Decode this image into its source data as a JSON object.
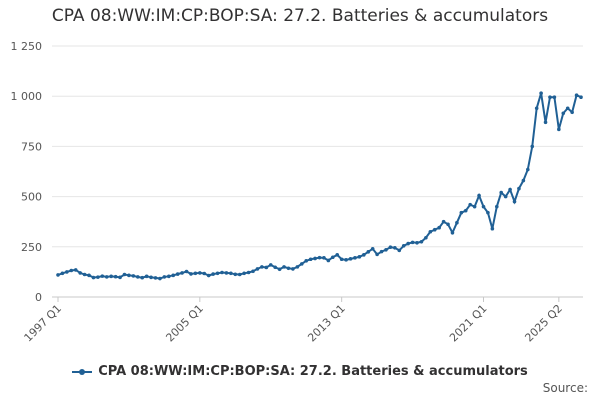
{
  "chart_data": {
    "type": "line",
    "title": "CPA 08:WW:IM:CP:BOP:SA: 27.2. Batteries & accumulators",
    "xlabel": "",
    "ylabel": "",
    "x_tick_labels": [
      "1997 Q1",
      "2005 Q1",
      "2013 Q1",
      "2021 Q1",
      "2025 Q2"
    ],
    "y_tick_labels": [
      "0",
      "250",
      "500",
      "750",
      "1 000",
      "1 250"
    ],
    "ylim": [
      0,
      1250
    ],
    "grid": true,
    "legend_position": "bottom",
    "start_year": 1997,
    "start_quarter": 1,
    "series": [
      {
        "name": "CPA 08:WW:IM:CP:BOP:SA: 27.2. Batteries & accumulators",
        "color": "#206095",
        "values": [
          110,
          118,
          125,
          132,
          135,
          120,
          112,
          108,
          97,
          99,
          104,
          100,
          103,
          101,
          98,
          112,
          108,
          105,
          100,
          96,
          103,
          98,
          95,
          92,
          100,
          103,
          108,
          114,
          120,
          127,
          115,
          118,
          120,
          117,
          107,
          114,
          118,
          122,
          120,
          118,
          113,
          112,
          118,
          122,
          128,
          140,
          150,
          147,
          160,
          148,
          138,
          150,
          143,
          140,
          150,
          165,
          180,
          188,
          192,
          196,
          195,
          182,
          198,
          210,
          188,
          185,
          190,
          195,
          200,
          210,
          225,
          240,
          212,
          226,
          235,
          248,
          245,
          232,
          255,
          266,
          272,
          270,
          275,
          295,
          325,
          335,
          345,
          375,
          362,
          320,
          370,
          420,
          430,
          460,
          450,
          505,
          450,
          420,
          340,
          450,
          520,
          500,
          535,
          475,
          540,
          580,
          635,
          750,
          940,
          1015,
          870,
          995,
          995,
          835,
          915,
          940,
          920,
          1005,
          995
        ]
      }
    ]
  },
  "legend": {
    "label": "CPA 08:WW:IM:CP:BOP:SA: 27.2. Batteries & accumulators"
  },
  "footer": {
    "source_label": "Source:"
  }
}
